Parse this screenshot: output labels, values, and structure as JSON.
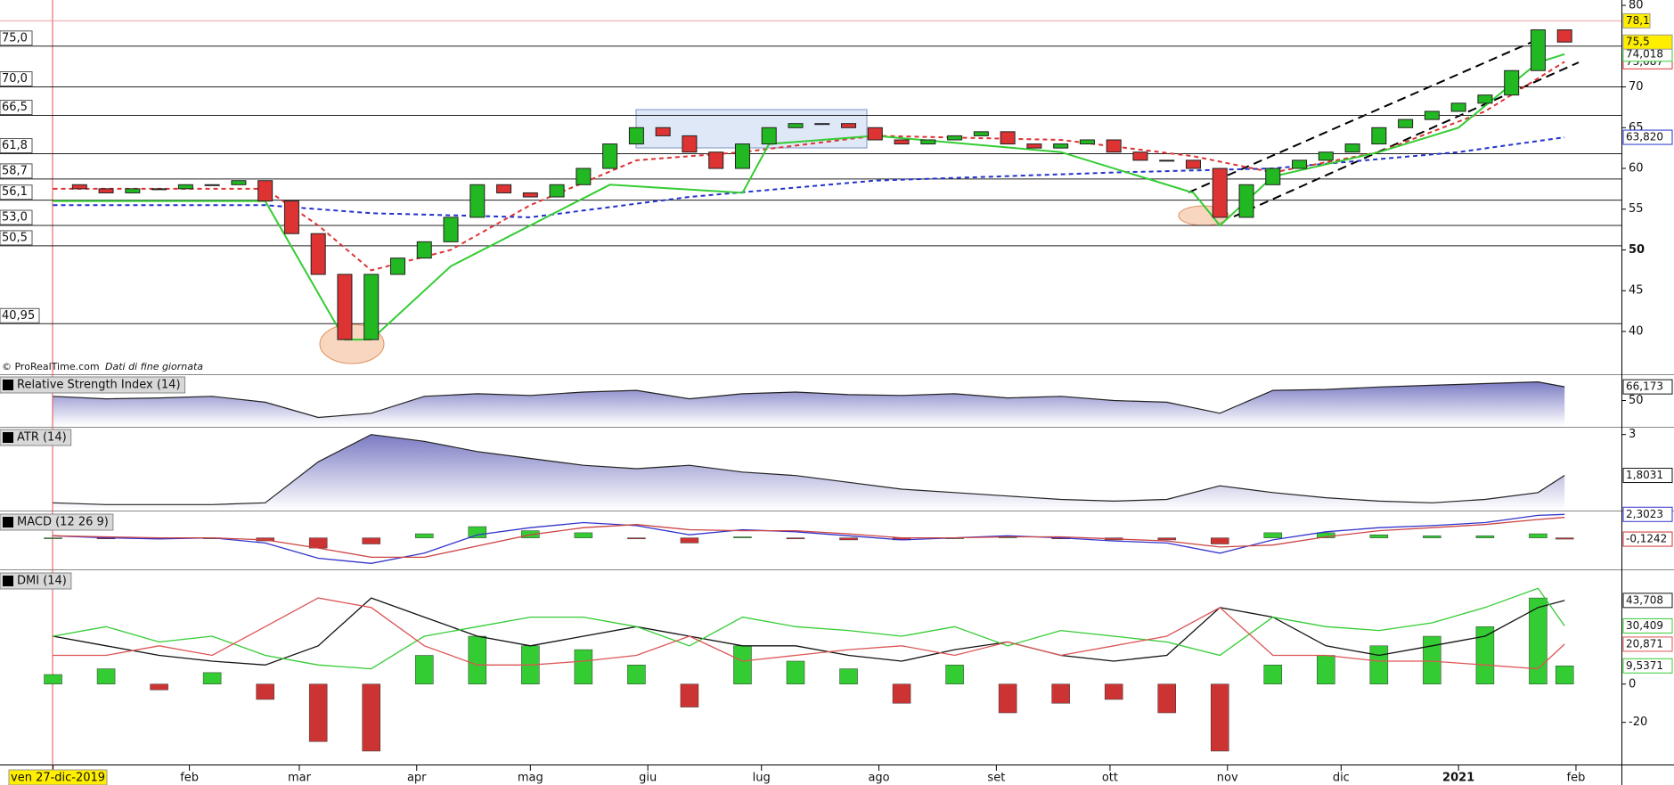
{
  "chart_data": [
    {
      "type": "candlestick",
      "copyright": "© ProRealTime.com",
      "source_note": "Dati di fine giornata",
      "x": [
        0,
        7,
        14,
        21,
        28,
        35,
        42,
        49,
        56,
        63,
        70,
        77,
        84,
        91,
        98,
        105,
        112,
        119,
        126,
        133,
        140,
        147,
        154,
        161,
        168,
        175,
        182,
        189,
        196,
        203,
        210,
        217,
        224,
        231,
        238,
        245,
        252,
        259,
        266,
        273,
        280,
        287,
        294,
        301,
        308,
        315,
        322,
        329,
        336,
        343,
        350,
        357,
        364,
        371,
        378,
        385,
        392,
        399
      ],
      "values": [
        58,
        57.5,
        57,
        57.5,
        57.5,
        58,
        58,
        58.5,
        56,
        52,
        47,
        39,
        47,
        49,
        51,
        54,
        58,
        57,
        56.5,
        58,
        60,
        63,
        65,
        64,
        62,
        60,
        63,
        65,
        65.5,
        65.5,
        65,
        63.5,
        63,
        63.5,
        64,
        64.5,
        63,
        62.5,
        63,
        63.5,
        62,
        61,
        61,
        60,
        54,
        58,
        60,
        61,
        62,
        63,
        65,
        66,
        67,
        68,
        69,
        72,
        77,
        75.5
      ],
      "end_label": "75,5",
      "high": {
        "value": 78.1,
        "label": "78,1"
      },
      "color_up": "#22b822",
      "color_down": "#dd3333",
      "overlays": [
        {
          "color": "#2233cc",
          "dash": true,
          "x": [
            0,
            56,
            84,
            126,
            168,
            217,
            280,
            322,
            371,
            399
          ],
          "values": [
            55.5,
            55.5,
            54.5,
            54,
            56.5,
            58.5,
            59.5,
            60,
            62,
            63.82
          ],
          "end_label": "63,820"
        },
        {
          "color": "#dd3333",
          "dash": true,
          "x": [
            0,
            56,
            70,
            84,
            105,
            126,
            154,
            182,
            217,
            266,
            301,
            322,
            350,
            378,
            399
          ],
          "values": [
            57.5,
            57.5,
            53,
            47.5,
            50,
            55.5,
            61,
            62,
            64,
            63.5,
            61.5,
            59.5,
            62,
            67,
            73.087
          ],
          "end_label": "73,087"
        },
        {
          "color": "#33cc33",
          "dash": false,
          "x": [
            0,
            56,
            77,
            84,
            105,
            126,
            147,
            182,
            189,
            217,
            266,
            301,
            308,
            322,
            350,
            371,
            392,
            399
          ],
          "values": [
            56,
            56,
            39,
            39,
            48,
            53,
            58,
            57,
            63,
            64,
            62,
            57,
            53,
            59,
            62,
            65,
            73,
            74.018
          ],
          "end_label": "74,018"
        }
      ],
      "levels": [
        {
          "value": 75,
          "label": "75,0"
        },
        {
          "value": 70,
          "label": "70,0"
        },
        {
          "value": 66.5,
          "label": "66,5"
        },
        {
          "value": 61.8,
          "label": "61,8"
        },
        {
          "value": 58.7,
          "label": "58,7"
        },
        {
          "value": 56.1,
          "label": "56,1"
        },
        {
          "value": 53,
          "label": "53,0"
        },
        {
          "value": 50.5,
          "label": "50,5"
        },
        {
          "value": 40.95,
          "label": "40,95"
        }
      ],
      "ylim": [
        34.75,
        80.66
      ],
      "yticks": [
        40,
        45,
        50,
        55,
        60,
        65,
        70,
        80
      ],
      "xlim": [
        -14,
        414
      ],
      "xticks": [
        {
          "value": 0,
          "label": "ven 27-dic-2019"
        },
        {
          "value": 36,
          "label": "feb"
        },
        {
          "value": 65,
          "label": "mar"
        },
        {
          "value": 96,
          "label": "apr"
        },
        {
          "value": 126,
          "label": "mag"
        },
        {
          "value": 157,
          "label": "giu"
        },
        {
          "value": 187,
          "label": "lug"
        },
        {
          "value": 218,
          "label": "ago"
        },
        {
          "value": 249,
          "label": "set"
        },
        {
          "value": 279,
          "label": "ott"
        },
        {
          "value": 310,
          "label": "nov"
        },
        {
          "value": 340,
          "label": "dic"
        },
        {
          "value": 371,
          "label": "2021"
        },
        {
          "value": 402,
          "label": "feb"
        }
      ]
    },
    {
      "type": "area",
      "title": "Relative Strength Index (14)",
      "x": [
        0,
        14,
        28,
        42,
        56,
        70,
        84,
        98,
        112,
        126,
        140,
        154,
        168,
        182,
        196,
        210,
        224,
        238,
        252,
        266,
        280,
        294,
        308,
        322,
        336,
        350,
        364,
        378,
        392,
        399
      ],
      "values": [
        55,
        52,
        53,
        55,
        48,
        30,
        35,
        55,
        58,
        56,
        60,
        62,
        52,
        58,
        60,
        57,
        56,
        58,
        53,
        55,
        50,
        48,
        35,
        62,
        63,
        66,
        68,
        70,
        72,
        66.173
      ],
      "end_label": "66,173",
      "ylim": [
        20,
        80
      ],
      "yticks": [
        50
      ]
    },
    {
      "type": "area",
      "title": "ATR (14)",
      "x": [
        0,
        14,
        28,
        42,
        56,
        70,
        84,
        98,
        112,
        126,
        140,
        154,
        168,
        182,
        196,
        210,
        224,
        238,
        252,
        266,
        280,
        294,
        308,
        322,
        336,
        350,
        364,
        378,
        392,
        399
      ],
      "values": [
        1.0,
        0.95,
        0.95,
        0.95,
        1.0,
        2.2,
        3.0,
        2.8,
        2.5,
        2.3,
        2.1,
        2.0,
        2.1,
        1.9,
        1.8,
        1.6,
        1.4,
        1.3,
        1.2,
        1.1,
        1.05,
        1.1,
        1.5,
        1.3,
        1.15,
        1.05,
        1.0,
        1.1,
        1.3,
        1.8031
      ],
      "end_label": "1,8031",
      "ylim": [
        0.8,
        3.2
      ],
      "yticks": [
        3
      ]
    },
    {
      "type": "oscillator",
      "title": "MACD (12 26 9)",
      "x": [
        0,
        14,
        28,
        42,
        56,
        70,
        84,
        98,
        112,
        126,
        140,
        154,
        168,
        182,
        196,
        210,
        224,
        238,
        252,
        266,
        280,
        294,
        308,
        322,
        336,
        350,
        364,
        378,
        392,
        399
      ],
      "lines": [
        {
          "color": "#3333cc",
          "values": [
            0.2,
            0,
            -0.1,
            0,
            -0.5,
            -2,
            -2.5,
            -1.5,
            0.3,
            1.0,
            1.5,
            1.2,
            0.3,
            0.8,
            0.6,
            0.2,
            -0.2,
            0,
            0.2,
            0,
            -0.3,
            -0.5,
            -1.5,
            -0.2,
            0.6,
            1.0,
            1.2,
            1.5,
            2.2,
            2.3023
          ],
          "end_label": "2,3023"
        },
        {
          "color": "#cc4444",
          "values": [
            0.2,
            0.1,
            0,
            0,
            -0.2,
            -1,
            -1.9,
            -1.9,
            -0.8,
            0.3,
            1.0,
            1.3,
            0.8,
            0.7,
            0.7,
            0.4,
            0,
            0,
            0.1,
            0.1,
            -0.1,
            -0.3,
            -0.9,
            -0.7,
            0.1,
            0.7,
            1.0,
            1.3,
            1.8,
            2.0
          ]
        }
      ],
      "bars": {
        "color_up": "#33cc33",
        "color_down": "#cc3333",
        "values": [
          0,
          -0.1,
          -0.1,
          0,
          -0.3,
          -1,
          -0.6,
          0.4,
          1.1,
          0.7,
          0.5,
          -0.1,
          -0.5,
          0.1,
          -0.1,
          -0.2,
          -0.2,
          0,
          0.1,
          -0.1,
          -0.2,
          -0.2,
          -0.6,
          0.5,
          0.5,
          0.3,
          0.2,
          0.2,
          0.4,
          -0.1242
        ],
        "end_label": "-0,1242"
      },
      "ylim": [
        -3,
        2.5
      ]
    },
    {
      "type": "oscillator",
      "title": "DMI (14)",
      "x": [
        0,
        14,
        28,
        42,
        56,
        70,
        84,
        98,
        112,
        126,
        140,
        154,
        168,
        182,
        196,
        210,
        224,
        238,
        252,
        266,
        280,
        294,
        308,
        322,
        336,
        350,
        364,
        378,
        392,
        399
      ],
      "lines": [
        {
          "color": "#111111",
          "values": [
            25,
            20,
            15,
            12,
            10,
            20,
            45,
            35,
            25,
            20,
            25,
            30,
            25,
            20,
            20,
            15,
            12,
            18,
            22,
            15,
            12,
            15,
            40,
            35,
            20,
            15,
            20,
            25,
            40,
            43.708
          ],
          "end_label": "43,708"
        },
        {
          "color": "#33cc33",
          "values": [
            25,
            30,
            22,
            25,
            15,
            10,
            8,
            25,
            30,
            35,
            35,
            30,
            20,
            35,
            30,
            28,
            25,
            30,
            20,
            28,
            25,
            22,
            15,
            35,
            30,
            28,
            32,
            40,
            50,
            30.409
          ],
          "end_label": "30,409"
        },
        {
          "color": "#dd5555",
          "values": [
            15,
            15,
            20,
            15,
            30,
            45,
            40,
            20,
            10,
            10,
            12,
            15,
            25,
            12,
            15,
            18,
            20,
            15,
            22,
            15,
            20,
            25,
            40,
            15,
            15,
            12,
            12,
            10,
            8,
            20.871
          ],
          "end_label": "20,871"
        }
      ],
      "bars": {
        "color_up": "#33cc33",
        "color_down": "#cc3333",
        "values": [
          5,
          8,
          -3,
          6,
          -8,
          -30,
          -35,
          15,
          25,
          20,
          18,
          10,
          -12,
          20,
          12,
          8,
          -10,
          10,
          -15,
          -10,
          -8,
          -15,
          -35,
          10,
          15,
          20,
          25,
          30,
          45,
          9.5371
        ],
        "end_label": "9,5371"
      },
      "ylim": [
        -42,
        59
      ],
      "yticks": [
        0,
        -20
      ]
    }
  ]
}
